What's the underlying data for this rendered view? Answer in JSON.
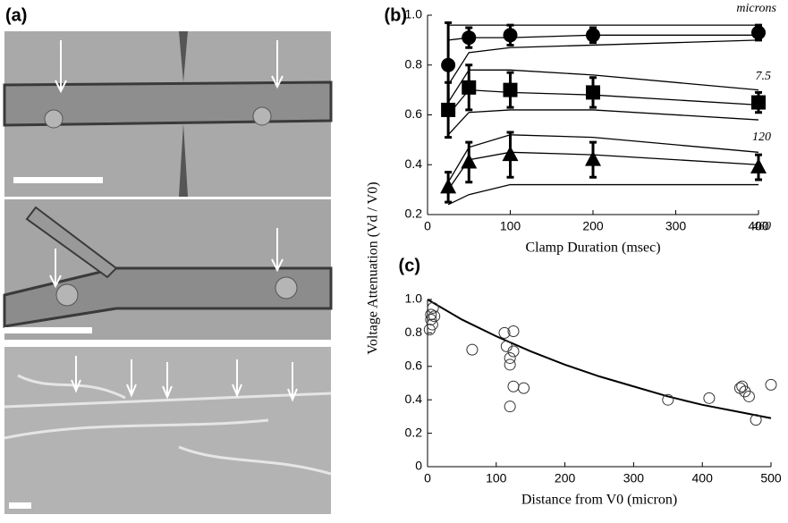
{
  "panel_a": {
    "label": "(a)"
  },
  "chart_data": [
    {
      "type": "line",
      "panel": "(b)",
      "x": [
        25,
        50,
        100,
        200,
        400
      ],
      "xlim": [
        0,
        400
      ],
      "xticks": [
        0,
        100,
        200,
        300,
        400
      ],
      "ylim": [
        0.2,
        1.0
      ],
      "yticks": [
        0.2,
        0.4,
        0.6,
        0.8,
        {
          "value": 1.0,
          "label": "1.0"
        }
      ],
      "xlabel": "Clamp Duration (msec)",
      "ylabel": "Voltage Attenuation (Vd / V0)",
      "annotations": [
        "microns",
        "7.5",
        "120",
        "460"
      ],
      "series": [
        {
          "marker": "circle",
          "color": "#000",
          "values": [
            0.8,
            0.91,
            0.92,
            0.92,
            0.93
          ],
          "errors": [
            0.17,
            0.04,
            0.04,
            0.03,
            0.03
          ],
          "traces": [
            [
              0.96,
              0.96,
              0.96,
              0.96,
              0.96
            ],
            [
              0.9,
              0.91,
              0.91,
              0.92,
              0.92
            ],
            [
              0.72,
              0.85,
              0.87,
              0.88,
              0.9
            ]
          ]
        },
        {
          "marker": "square",
          "color": "#000",
          "values": [
            0.62,
            0.71,
            0.7,
            0.69,
            0.65
          ],
          "errors": [
            0.11,
            0.09,
            0.07,
            0.06,
            0.04
          ],
          "traces": [
            [
              0.65,
              0.78,
              0.78,
              0.76,
              0.7
            ],
            [
              0.6,
              0.7,
              0.69,
              0.68,
              0.64
            ],
            [
              0.52,
              0.61,
              0.62,
              0.62,
              0.58
            ]
          ]
        },
        {
          "marker": "triangle",
          "color": "#000",
          "values": [
            0.31,
            0.41,
            0.44,
            0.42,
            0.39
          ],
          "errors": [
            0.06,
            0.08,
            0.09,
            0.07,
            0.05
          ],
          "traces": [
            [
              0.33,
              0.47,
              0.52,
              0.51,
              0.45
            ],
            [
              0.3,
              0.42,
              0.45,
              0.44,
              0.4
            ],
            [
              0.24,
              0.28,
              0.32,
              0.32,
              0.32
            ]
          ]
        }
      ]
    },
    {
      "type": "scatter",
      "panel": "(c)",
      "xlim": [
        0,
        500
      ],
      "xticks": [
        0,
        100,
        200,
        300,
        400,
        500
      ],
      "ylim": [
        0,
        1.0
      ],
      "yticks": [
        0,
        0.2,
        0.4,
        0.6,
        0.8,
        {
          "value": 1.0,
          "label": "1.0"
        }
      ],
      "xlabel": "Distance from V0 (micron)",
      "points": {
        "x": [
          3,
          5,
          5,
          7,
          8,
          10,
          65,
          112,
          115,
          120,
          120,
          120,
          125,
          125,
          125,
          140,
          350,
          410,
          455,
          458,
          462,
          468,
          478,
          500
        ],
        "y": [
          0.82,
          0.91,
          0.88,
          0.85,
          0.95,
          0.9,
          0.7,
          0.8,
          0.72,
          0.65,
          0.61,
          0.36,
          0.81,
          0.69,
          0.48,
          0.47,
          0.4,
          0.41,
          0.47,
          0.48,
          0.45,
          0.42,
          0.28,
          0.49
        ]
      },
      "fit": {
        "x": [
          0,
          50,
          100,
          150,
          200,
          250,
          300,
          350,
          400,
          450,
          500
        ],
        "y": [
          1.0,
          0.88,
          0.78,
          0.69,
          0.61,
          0.54,
          0.48,
          0.42,
          0.37,
          0.33,
          0.29
        ]
      }
    }
  ]
}
